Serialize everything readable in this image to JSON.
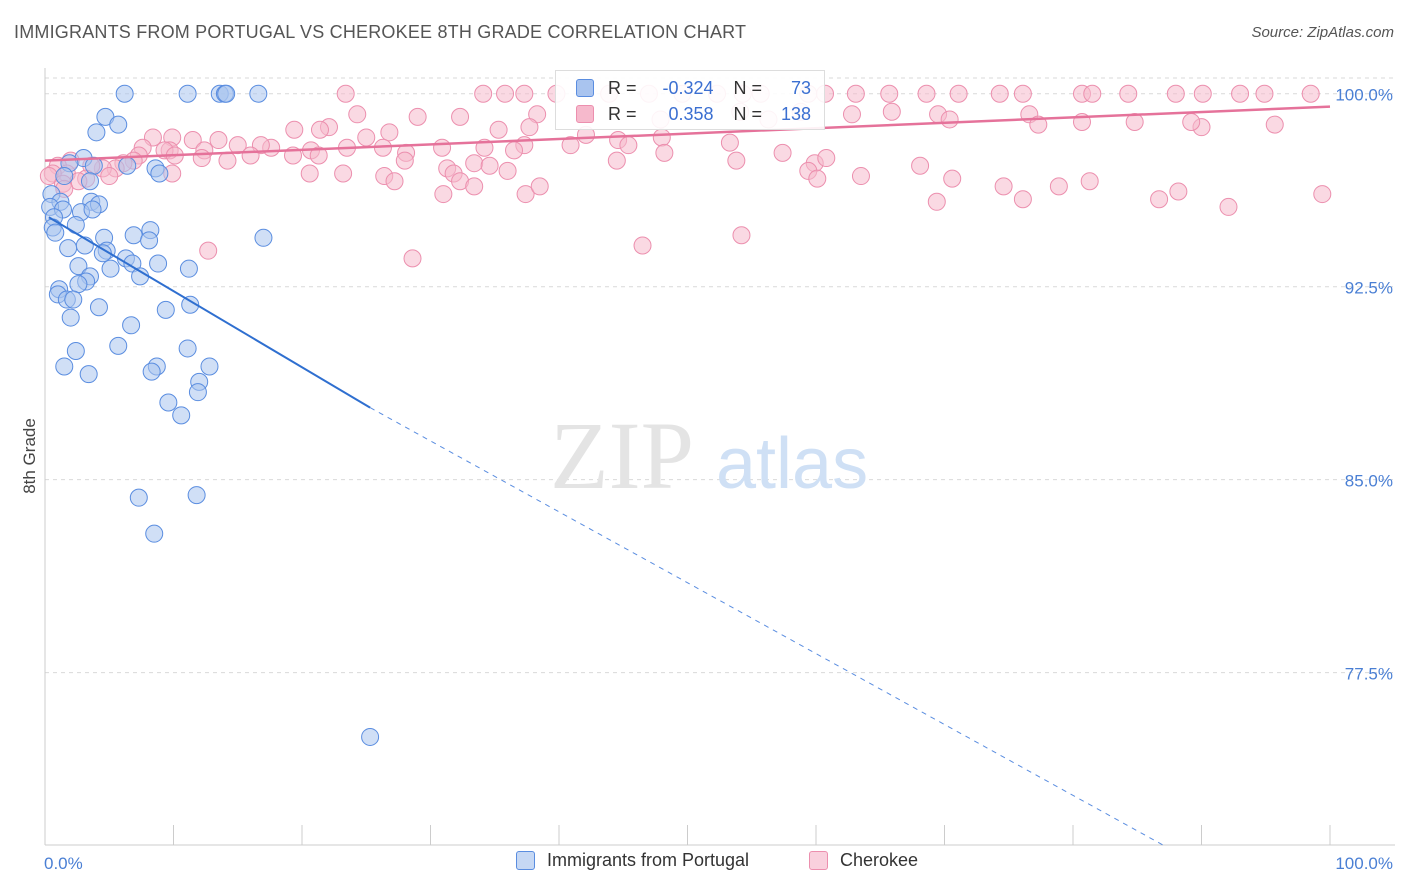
{
  "title": "IMMIGRANTS FROM PORTUGAL VS CHEROKEE 8TH GRADE CORRELATION CHART",
  "source": "Source: ZipAtlas.com",
  "watermark": {
    "zip": "ZIP",
    "atlas": "atlas"
  },
  "colors": {
    "blue_fill": "#a9c4ef",
    "blue_stroke": "#5a8de0",
    "blue_line": "#2f6fd0",
    "pink_fill": "#f6b9cc",
    "pink_stroke": "#ec8fae",
    "pink_line": "#e5729a",
    "tick_text": "#4a7fd4",
    "grid": "#d9d9d9"
  },
  "stats": [
    {
      "r_label": "R =",
      "r_value": "-0.324",
      "n_label": "N =",
      "n_value": "73"
    },
    {
      "r_label": "R =",
      "r_value": "0.358",
      "n_label": "N =",
      "n_value": "138"
    }
  ],
  "chart_data": {
    "type": "scatter",
    "title": "IMMIGRANTS FROM PORTUGAL VS CHEROKEE 8TH GRADE CORRELATION CHART",
    "xlabel": "",
    "ylabel": "8th Grade",
    "xlim": [
      0,
      100
    ],
    "ylim": [
      70.8,
      101.0
    ],
    "x_tick_labels": [
      "0.0%",
      "100.0%"
    ],
    "y_ticks": [
      77.5,
      85.0,
      92.5,
      100.0
    ],
    "y_tick_labels": [
      "77.5%",
      "85.0%",
      "92.5%",
      "100.0%"
    ],
    "grid": true,
    "legend_position": "bottom",
    "series": [
      {
        "name": "Immigrants from Portugal",
        "color": "#a9c4ef",
        "trend": {
          "x0": 0.3,
          "y0": 95.2,
          "x1": 25.3,
          "y1": 87.8,
          "dash_x1": 87.0,
          "dash_y1": 70.8
        },
        "points": [
          [
            6.2,
            100
          ],
          [
            11.1,
            100
          ],
          [
            13.6,
            100
          ],
          [
            14.0,
            100
          ],
          [
            16.6,
            100
          ],
          [
            4.7,
            99.1
          ],
          [
            5.7,
            98.8
          ],
          [
            4.0,
            98.5
          ],
          [
            3.0,
            97.5
          ],
          [
            1.9,
            97.3
          ],
          [
            3.8,
            97.2
          ],
          [
            6.4,
            97.2
          ],
          [
            8.6,
            97.1
          ],
          [
            1.5,
            96.8
          ],
          [
            8.9,
            96.9
          ],
          [
            3.5,
            96.6
          ],
          [
            0.5,
            96.1
          ],
          [
            1.2,
            95.8
          ],
          [
            3.6,
            95.8
          ],
          [
            4.2,
            95.7
          ],
          [
            0.4,
            95.6
          ],
          [
            1.4,
            95.5
          ],
          [
            2.8,
            95.4
          ],
          [
            3.7,
            95.5
          ],
          [
            0.7,
            95.2
          ],
          [
            0.6,
            94.8
          ],
          [
            2.4,
            94.9
          ],
          [
            8.2,
            94.7
          ],
          [
            0.8,
            94.6
          ],
          [
            6.9,
            94.5
          ],
          [
            8.1,
            94.3
          ],
          [
            17.0,
            94.4
          ],
          [
            4.6,
            94.4
          ],
          [
            1.8,
            94.0
          ],
          [
            4.8,
            93.9
          ],
          [
            3.1,
            94.1
          ],
          [
            4.5,
            93.8
          ],
          [
            6.3,
            93.6
          ],
          [
            2.6,
            93.3
          ],
          [
            6.8,
            93.4
          ],
          [
            8.8,
            93.4
          ],
          [
            5.1,
            93.2
          ],
          [
            11.2,
            93.2
          ],
          [
            7.4,
            92.9
          ],
          [
            3.5,
            92.9
          ],
          [
            3.2,
            92.7
          ],
          [
            2.6,
            92.6
          ],
          [
            1.1,
            92.4
          ],
          [
            1.0,
            92.2
          ],
          [
            1.7,
            92.0
          ],
          [
            2.2,
            92.0
          ],
          [
            11.3,
            91.8
          ],
          [
            4.2,
            91.7
          ],
          [
            9.4,
            91.6
          ],
          [
            2.0,
            91.3
          ],
          [
            6.7,
            91.0
          ],
          [
            5.7,
            90.2
          ],
          [
            11.1,
            90.1
          ],
          [
            2.4,
            90.0
          ],
          [
            12.8,
            89.4
          ],
          [
            1.5,
            89.4
          ],
          [
            8.7,
            89.4
          ],
          [
            8.3,
            89.2
          ],
          [
            3.4,
            89.1
          ],
          [
            12.0,
            88.8
          ],
          [
            11.9,
            88.4
          ],
          [
            9.6,
            88.0
          ],
          [
            10.6,
            87.5
          ],
          [
            7.3,
            84.3
          ],
          [
            11.8,
            84.4
          ],
          [
            8.5,
            82.9
          ],
          [
            25.3,
            75.0
          ],
          [
            14.1,
            100
          ]
        ]
      },
      {
        "name": "Cherokee",
        "color": "#f6b9cc",
        "trend": {
          "x0": 0.0,
          "y0": 97.4,
          "x1": 100.0,
          "y1": 99.5
        },
        "points": [
          [
            23.4,
            100
          ],
          [
            34.1,
            100
          ],
          [
            35.8,
            100
          ],
          [
            37.3,
            100
          ],
          [
            39.8,
            100
          ],
          [
            43.9,
            100
          ],
          [
            47.0,
            100
          ],
          [
            49.6,
            100
          ],
          [
            52.3,
            100
          ],
          [
            54.3,
            100
          ],
          [
            55.7,
            100
          ],
          [
            59.4,
            100
          ],
          [
            60.7,
            100
          ],
          [
            63.1,
            100
          ],
          [
            65.7,
            100
          ],
          [
            68.6,
            100
          ],
          [
            71.1,
            100
          ],
          [
            74.3,
            100
          ],
          [
            76.1,
            100
          ],
          [
            80.7,
            100
          ],
          [
            81.5,
            100
          ],
          [
            84.3,
            100
          ],
          [
            88.0,
            100
          ],
          [
            90.1,
            100
          ],
          [
            93.0,
            100
          ],
          [
            94.9,
            100
          ],
          [
            98.5,
            100
          ],
          [
            65.9,
            99.3
          ],
          [
            62.8,
            99.2
          ],
          [
            58.8,
            99.3
          ],
          [
            54.1,
            99.3
          ],
          [
            56.3,
            99.0
          ],
          [
            69.5,
            99.2
          ],
          [
            70.4,
            99.0
          ],
          [
            76.6,
            99.2
          ],
          [
            77.3,
            98.8
          ],
          [
            80.7,
            98.9
          ],
          [
            84.8,
            98.9
          ],
          [
            90.0,
            98.7
          ],
          [
            89.2,
            98.9
          ],
          [
            95.7,
            98.8
          ],
          [
            32.3,
            99.1
          ],
          [
            24.3,
            99.2
          ],
          [
            29.0,
            99.1
          ],
          [
            38.3,
            99.2
          ],
          [
            47.9,
            99.0
          ],
          [
            37.7,
            98.7
          ],
          [
            35.3,
            98.6
          ],
          [
            26.8,
            98.5
          ],
          [
            22.1,
            98.7
          ],
          [
            19.4,
            98.6
          ],
          [
            21.4,
            98.6
          ],
          [
            25.0,
            98.3
          ],
          [
            42.1,
            98.4
          ],
          [
            44.6,
            98.2
          ],
          [
            48.0,
            98.3
          ],
          [
            53.3,
            98.1
          ],
          [
            45.4,
            98.0
          ],
          [
            40.9,
            98.0
          ],
          [
            37.3,
            98.0
          ],
          [
            34.2,
            97.9
          ],
          [
            36.5,
            97.8
          ],
          [
            30.9,
            97.9
          ],
          [
            28.1,
            97.7
          ],
          [
            26.3,
            97.9
          ],
          [
            23.5,
            97.9
          ],
          [
            17.6,
            97.9
          ],
          [
            16.8,
            98.0
          ],
          [
            15.0,
            98.0
          ],
          [
            13.5,
            98.2
          ],
          [
            11.5,
            98.2
          ],
          [
            9.9,
            98.3
          ],
          [
            8.4,
            98.3
          ],
          [
            7.6,
            97.9
          ],
          [
            9.7,
            97.8
          ],
          [
            12.4,
            97.8
          ],
          [
            9.3,
            97.8
          ],
          [
            20.7,
            97.8
          ],
          [
            21.3,
            97.6
          ],
          [
            19.3,
            97.6
          ],
          [
            16.0,
            97.6
          ],
          [
            14.2,
            97.4
          ],
          [
            12.2,
            97.5
          ],
          [
            10.1,
            97.6
          ],
          [
            7.3,
            97.6
          ],
          [
            6.9,
            97.4
          ],
          [
            6.1,
            97.3
          ],
          [
            5.5,
            97.1
          ],
          [
            4.5,
            97.1
          ],
          [
            3.6,
            97.2
          ],
          [
            2.0,
            97.4
          ],
          [
            1.0,
            97.2
          ],
          [
            1.7,
            96.9
          ],
          [
            3.2,
            96.7
          ],
          [
            2.6,
            96.6
          ],
          [
            0.6,
            96.9
          ],
          [
            0.3,
            96.8
          ],
          [
            1.4,
            96.5
          ],
          [
            1.5,
            96.3
          ],
          [
            5.0,
            96.8
          ],
          [
            9.9,
            96.9
          ],
          [
            28.0,
            97.4
          ],
          [
            33.4,
            97.3
          ],
          [
            34.6,
            97.2
          ],
          [
            31.3,
            97.1
          ],
          [
            31.8,
            96.9
          ],
          [
            36.0,
            97.0
          ],
          [
            32.3,
            96.6
          ],
          [
            33.4,
            96.4
          ],
          [
            26.4,
            96.8
          ],
          [
            27.2,
            96.6
          ],
          [
            20.6,
            96.9
          ],
          [
            23.2,
            96.9
          ],
          [
            44.5,
            97.4
          ],
          [
            48.2,
            97.7
          ],
          [
            53.8,
            97.4
          ],
          [
            57.4,
            97.7
          ],
          [
            59.9,
            97.3
          ],
          [
            60.8,
            97.5
          ],
          [
            59.4,
            97.0
          ],
          [
            63.5,
            96.8
          ],
          [
            68.1,
            97.2
          ],
          [
            60.1,
            96.7
          ],
          [
            70.6,
            96.7
          ],
          [
            74.6,
            96.4
          ],
          [
            78.9,
            96.4
          ],
          [
            81.3,
            96.6
          ],
          [
            88.2,
            96.2
          ],
          [
            99.4,
            96.1
          ],
          [
            69.4,
            95.8
          ],
          [
            76.1,
            95.9
          ],
          [
            86.7,
            95.9
          ],
          [
            92.1,
            95.6
          ],
          [
            54.2,
            94.5
          ],
          [
            46.5,
            94.1
          ],
          [
            12.7,
            93.9
          ],
          [
            28.6,
            93.6
          ],
          [
            37.4,
            96.1
          ],
          [
            38.5,
            96.4
          ],
          [
            31.0,
            96.1
          ]
        ]
      }
    ]
  }
}
